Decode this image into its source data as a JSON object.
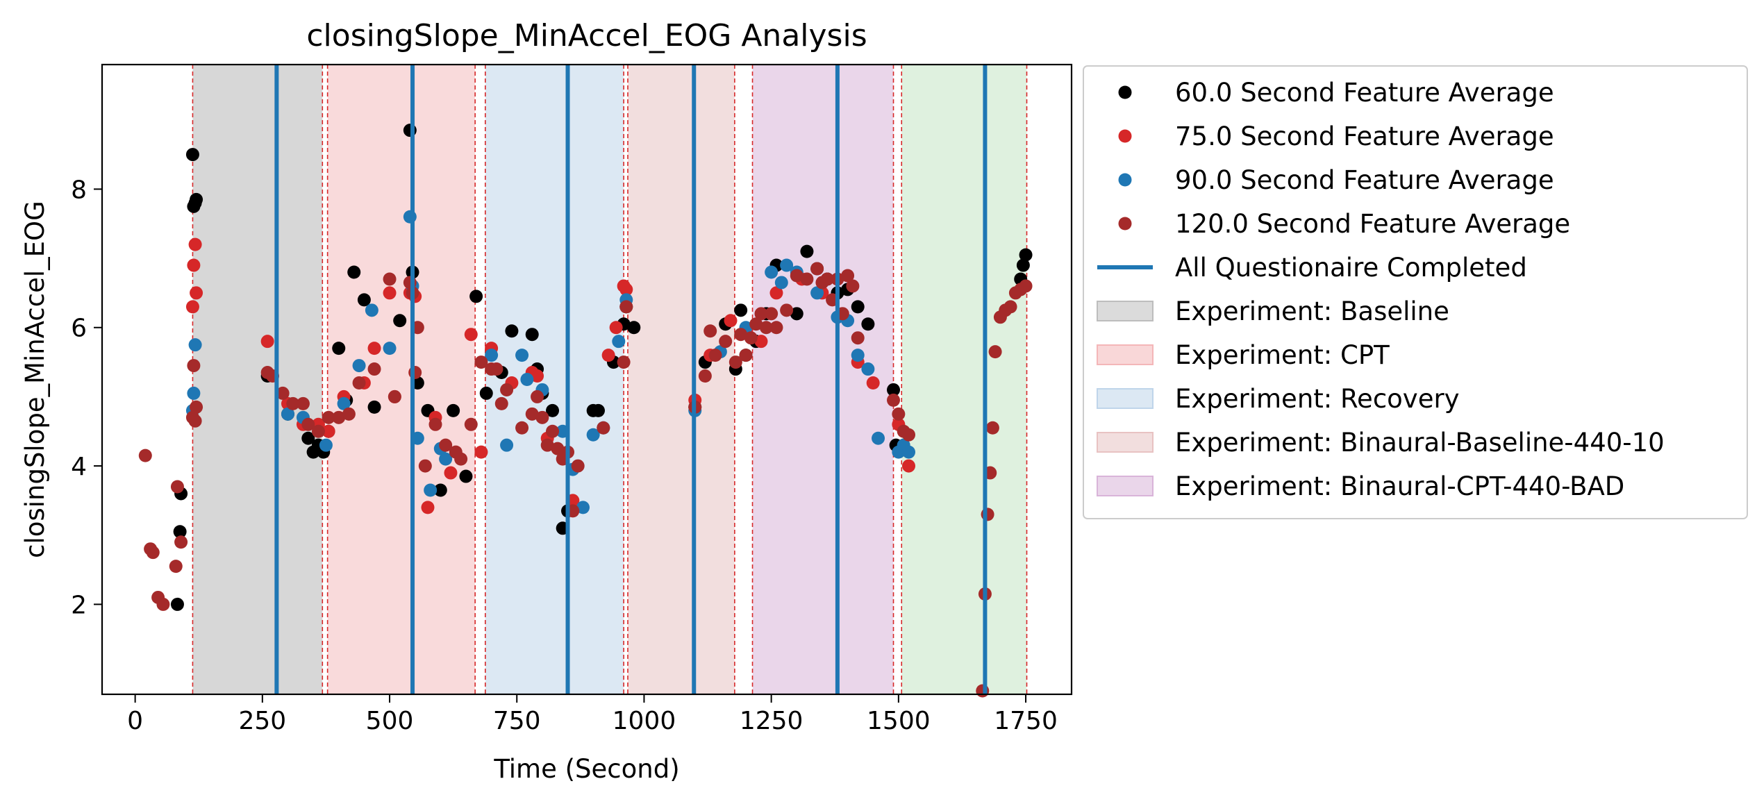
{
  "chart_data": {
    "type": "scatter",
    "title": "closingSlope_MinAccel_EOG Analysis",
    "xlabel": "Time (Second)",
    "ylabel": "closingSlope_MinAccel_EOG",
    "xlim": [
      -65,
      1840
    ],
    "ylim": [
      0.7,
      9.8
    ],
    "xticks": [
      0,
      250,
      500,
      750,
      1000,
      1250,
      1500,
      1750
    ],
    "yticks": [
      2,
      4,
      6,
      8
    ],
    "grid": false,
    "legend_position": "outside-right",
    "colors": {
      "s60": "#000000",
      "s75": "#d62728",
      "s90": "#1f77b4",
      "s120": "#a52a2a",
      "questionnaire": "#1f77b4",
      "boundary": "#d62728"
    },
    "phases": [
      {
        "name": "Experiment: Baseline",
        "start": 113,
        "end": 368,
        "color": "#bdbdbd",
        "opacity": 0.6
      },
      {
        "name": "Experiment: CPT",
        "start": 378,
        "end": 668,
        "color": "#f4b6b8",
        "opacity": 0.5
      },
      {
        "name": "Experiment: Recovery",
        "start": 688,
        "end": 960,
        "color": "#bfd5ea",
        "opacity": 0.55
      },
      {
        "name": "Experiment: Binaural-Baseline-440-10",
        "start": 968,
        "end": 1178,
        "color": "#e8c2c2",
        "opacity": 0.55
      },
      {
        "name": "Experiment: Binaural-CPT-440-BAD",
        "start": 1213,
        "end": 1490,
        "color": "#d9b4d9",
        "opacity": 0.55
      },
      {
        "name": "",
        "start": 1506,
        "end": 1752,
        "color": "#bfe3bf",
        "opacity": 0.5
      }
    ],
    "boundaries": [
      113,
      368,
      378,
      668,
      688,
      960,
      968,
      1178,
      1213,
      1490,
      1506,
      1752
    ],
    "questionnaire_times": [
      278,
      545,
      850,
      1098,
      1380,
      1670
    ],
    "series": [
      {
        "name": "60.0 Second Feature Average",
        "color": "#000000",
        "x": [
          83,
          88,
          90,
          113,
          115,
          118,
          120,
          260,
          300,
          340,
          350,
          360,
          370,
          380,
          400,
          415,
          430,
          450,
          470,
          520,
          540,
          545,
          555,
          575,
          600,
          625,
          650,
          670,
          690,
          720,
          740,
          780,
          790,
          800,
          820,
          840,
          850,
          900,
          910,
          940,
          960,
          965,
          980,
          1100,
          1120,
          1160,
          1180,
          1190,
          1200,
          1220,
          1240,
          1260,
          1300,
          1320,
          1340,
          1360,
          1380,
          1400,
          1420,
          1440,
          1490,
          1495,
          1510,
          1740,
          1745,
          1750
        ],
        "y": [
          2.0,
          3.05,
          3.6,
          8.5,
          7.75,
          7.8,
          7.85,
          5.3,
          4.75,
          4.4,
          4.2,
          4.3,
          4.2,
          4.5,
          5.7,
          4.95,
          6.8,
          6.4,
          4.85,
          6.1,
          8.85,
          6.8,
          5.2,
          4.8,
          3.65,
          4.8,
          3.85,
          6.45,
          5.05,
          5.35,
          5.95,
          5.9,
          5.4,
          5.05,
          4.8,
          3.1,
          3.35,
          4.8,
          4.8,
          5.5,
          6.05,
          6.3,
          6.0,
          4.85,
          5.5,
          6.05,
          5.4,
          6.25,
          5.6,
          5.8,
          6.2,
          6.9,
          6.2,
          7.1,
          6.85,
          6.7,
          6.5,
          6.55,
          6.3,
          6.05,
          5.1,
          4.3,
          4.25,
          6.7,
          6.9,
          7.05
        ]
      },
      {
        "name": "75.0 Second Feature Average",
        "color": "#d62728",
        "x": [
          113,
          115,
          118,
          120,
          260,
          300,
          330,
          360,
          380,
          410,
          450,
          470,
          500,
          510,
          540,
          550,
          575,
          590,
          620,
          660,
          680,
          700,
          740,
          780,
          790,
          810,
          860,
          930,
          945,
          960,
          965,
          1100,
          1130,
          1170,
          1200,
          1230,
          1260,
          1310,
          1350,
          1390,
          1420,
          1450,
          1500,
          1520
        ],
        "y": [
          6.3,
          6.9,
          7.2,
          6.5,
          5.8,
          4.9,
          4.6,
          4.6,
          4.5,
          5.0,
          5.2,
          5.7,
          6.5,
          5.0,
          6.5,
          6.45,
          3.4,
          4.7,
          3.9,
          5.9,
          4.2,
          5.7,
          5.2,
          5.35,
          5.3,
          4.4,
          3.5,
          5.6,
          6.0,
          6.6,
          6.55,
          4.95,
          5.6,
          6.1,
          5.95,
          5.8,
          6.5,
          6.7,
          6.5,
          6.2,
          5.5,
          5.2,
          4.6,
          4.0
        ]
      },
      {
        "name": "90.0 Second Feature Average",
        "color": "#1f77b4",
        "x": [
          113,
          115,
          118,
          300,
          330,
          375,
          410,
          440,
          465,
          500,
          540,
          545,
          555,
          580,
          600,
          610,
          700,
          730,
          760,
          770,
          800,
          840,
          860,
          880,
          900,
          920,
          950,
          965,
          1100,
          1150,
          1200,
          1250,
          1270,
          1280,
          1300,
          1340,
          1380,
          1400,
          1420,
          1440,
          1460,
          1500,
          1510,
          1520
        ],
        "y": [
          4.8,
          5.05,
          5.75,
          4.75,
          4.7,
          4.3,
          4.9,
          5.45,
          6.25,
          5.7,
          7.6,
          6.6,
          4.4,
          3.65,
          4.25,
          4.1,
          5.6,
          4.3,
          5.6,
          5.25,
          5.1,
          4.5,
          3.95,
          3.4,
          4.45,
          4.55,
          5.8,
          6.4,
          4.8,
          5.65,
          6.0,
          6.8,
          6.65,
          6.9,
          6.8,
          6.5,
          6.15,
          6.1,
          5.6,
          5.4,
          4.4,
          4.2,
          4.3,
          4.2
        ]
      },
      {
        "name": "120.0 Second Feature Average",
        "color": "#a52a2a",
        "x": [
          20,
          30,
          35,
          45,
          55,
          80,
          83,
          90,
          113,
          115,
          118,
          120,
          260,
          270,
          290,
          310,
          330,
          340,
          360,
          380,
          400,
          420,
          440,
          470,
          500,
          510,
          540,
          545,
          550,
          555,
          570,
          590,
          610,
          630,
          640,
          660,
          680,
          700,
          710,
          720,
          730,
          760,
          780,
          790,
          800,
          810,
          820,
          830,
          840,
          850,
          860,
          870,
          920,
          960,
          965,
          1100,
          1120,
          1130,
          1140,
          1160,
          1180,
          1190,
          1200,
          1210,
          1220,
          1230,
          1240,
          1250,
          1260,
          1280,
          1300,
          1320,
          1340,
          1350,
          1360,
          1370,
          1380,
          1390,
          1400,
          1410,
          1420,
          1490,
          1500,
          1510,
          1520,
          1665,
          1670,
          1675,
          1680,
          1685,
          1690,
          1700,
          1710,
          1720,
          1730,
          1740,
          1750
        ],
        "y": [
          4.15,
          2.8,
          2.75,
          2.1,
          2.0,
          2.55,
          3.7,
          2.9,
          4.7,
          5.45,
          4.65,
          4.85,
          5.35,
          5.3,
          5.05,
          4.9,
          4.9,
          4.6,
          4.5,
          4.7,
          4.7,
          4.75,
          5.2,
          5.4,
          6.7,
          5.0,
          6.65,
          6.5,
          5.35,
          6.0,
          4.0,
          4.6,
          4.3,
          4.2,
          4.1,
          4.6,
          5.5,
          5.4,
          5.4,
          4.9,
          5.1,
          4.55,
          4.75,
          5.0,
          4.7,
          4.3,
          4.5,
          4.25,
          4.1,
          4.2,
          3.35,
          4.0,
          4.55,
          5.5,
          6.3,
          4.85,
          5.3,
          5.95,
          5.6,
          5.8,
          5.5,
          5.9,
          5.6,
          5.85,
          6.05,
          6.2,
          6.0,
          6.2,
          6.0,
          6.25,
          6.75,
          6.7,
          6.85,
          6.65,
          6.7,
          6.4,
          6.7,
          6.2,
          6.75,
          6.6,
          5.85,
          4.95,
          4.75,
          4.5,
          4.45,
          0.75,
          2.15,
          3.3,
          3.9,
          4.55,
          5.65,
          6.15,
          6.25,
          6.3,
          6.5,
          6.55,
          6.6
        ]
      }
    ],
    "legend": [
      {
        "label": "60.0 Second Feature Average",
        "kind": "marker",
        "color": "#000000"
      },
      {
        "label": "75.0 Second Feature Average",
        "kind": "marker",
        "color": "#d62728"
      },
      {
        "label": "90.0 Second Feature Average",
        "kind": "marker",
        "color": "#1f77b4"
      },
      {
        "label": "120.0 Second Feature Average",
        "kind": "marker",
        "color": "#a52a2a"
      },
      {
        "label": "All Questionaire Completed",
        "kind": "line",
        "color": "#1f77b4"
      },
      {
        "label": "Experiment: Baseline",
        "kind": "patch",
        "color": "#bdbdbd"
      },
      {
        "label": "Experiment: CPT",
        "kind": "patch",
        "color": "#f4b6b8"
      },
      {
        "label": "Experiment: Recovery",
        "kind": "patch",
        "color": "#bfd5ea"
      },
      {
        "label": "Experiment: Binaural-Baseline-440-10",
        "kind": "patch",
        "color": "#e8c2c2"
      },
      {
        "label": "Experiment: Binaural-CPT-440-BAD",
        "kind": "patch",
        "color": "#d9b4d9"
      }
    ]
  }
}
